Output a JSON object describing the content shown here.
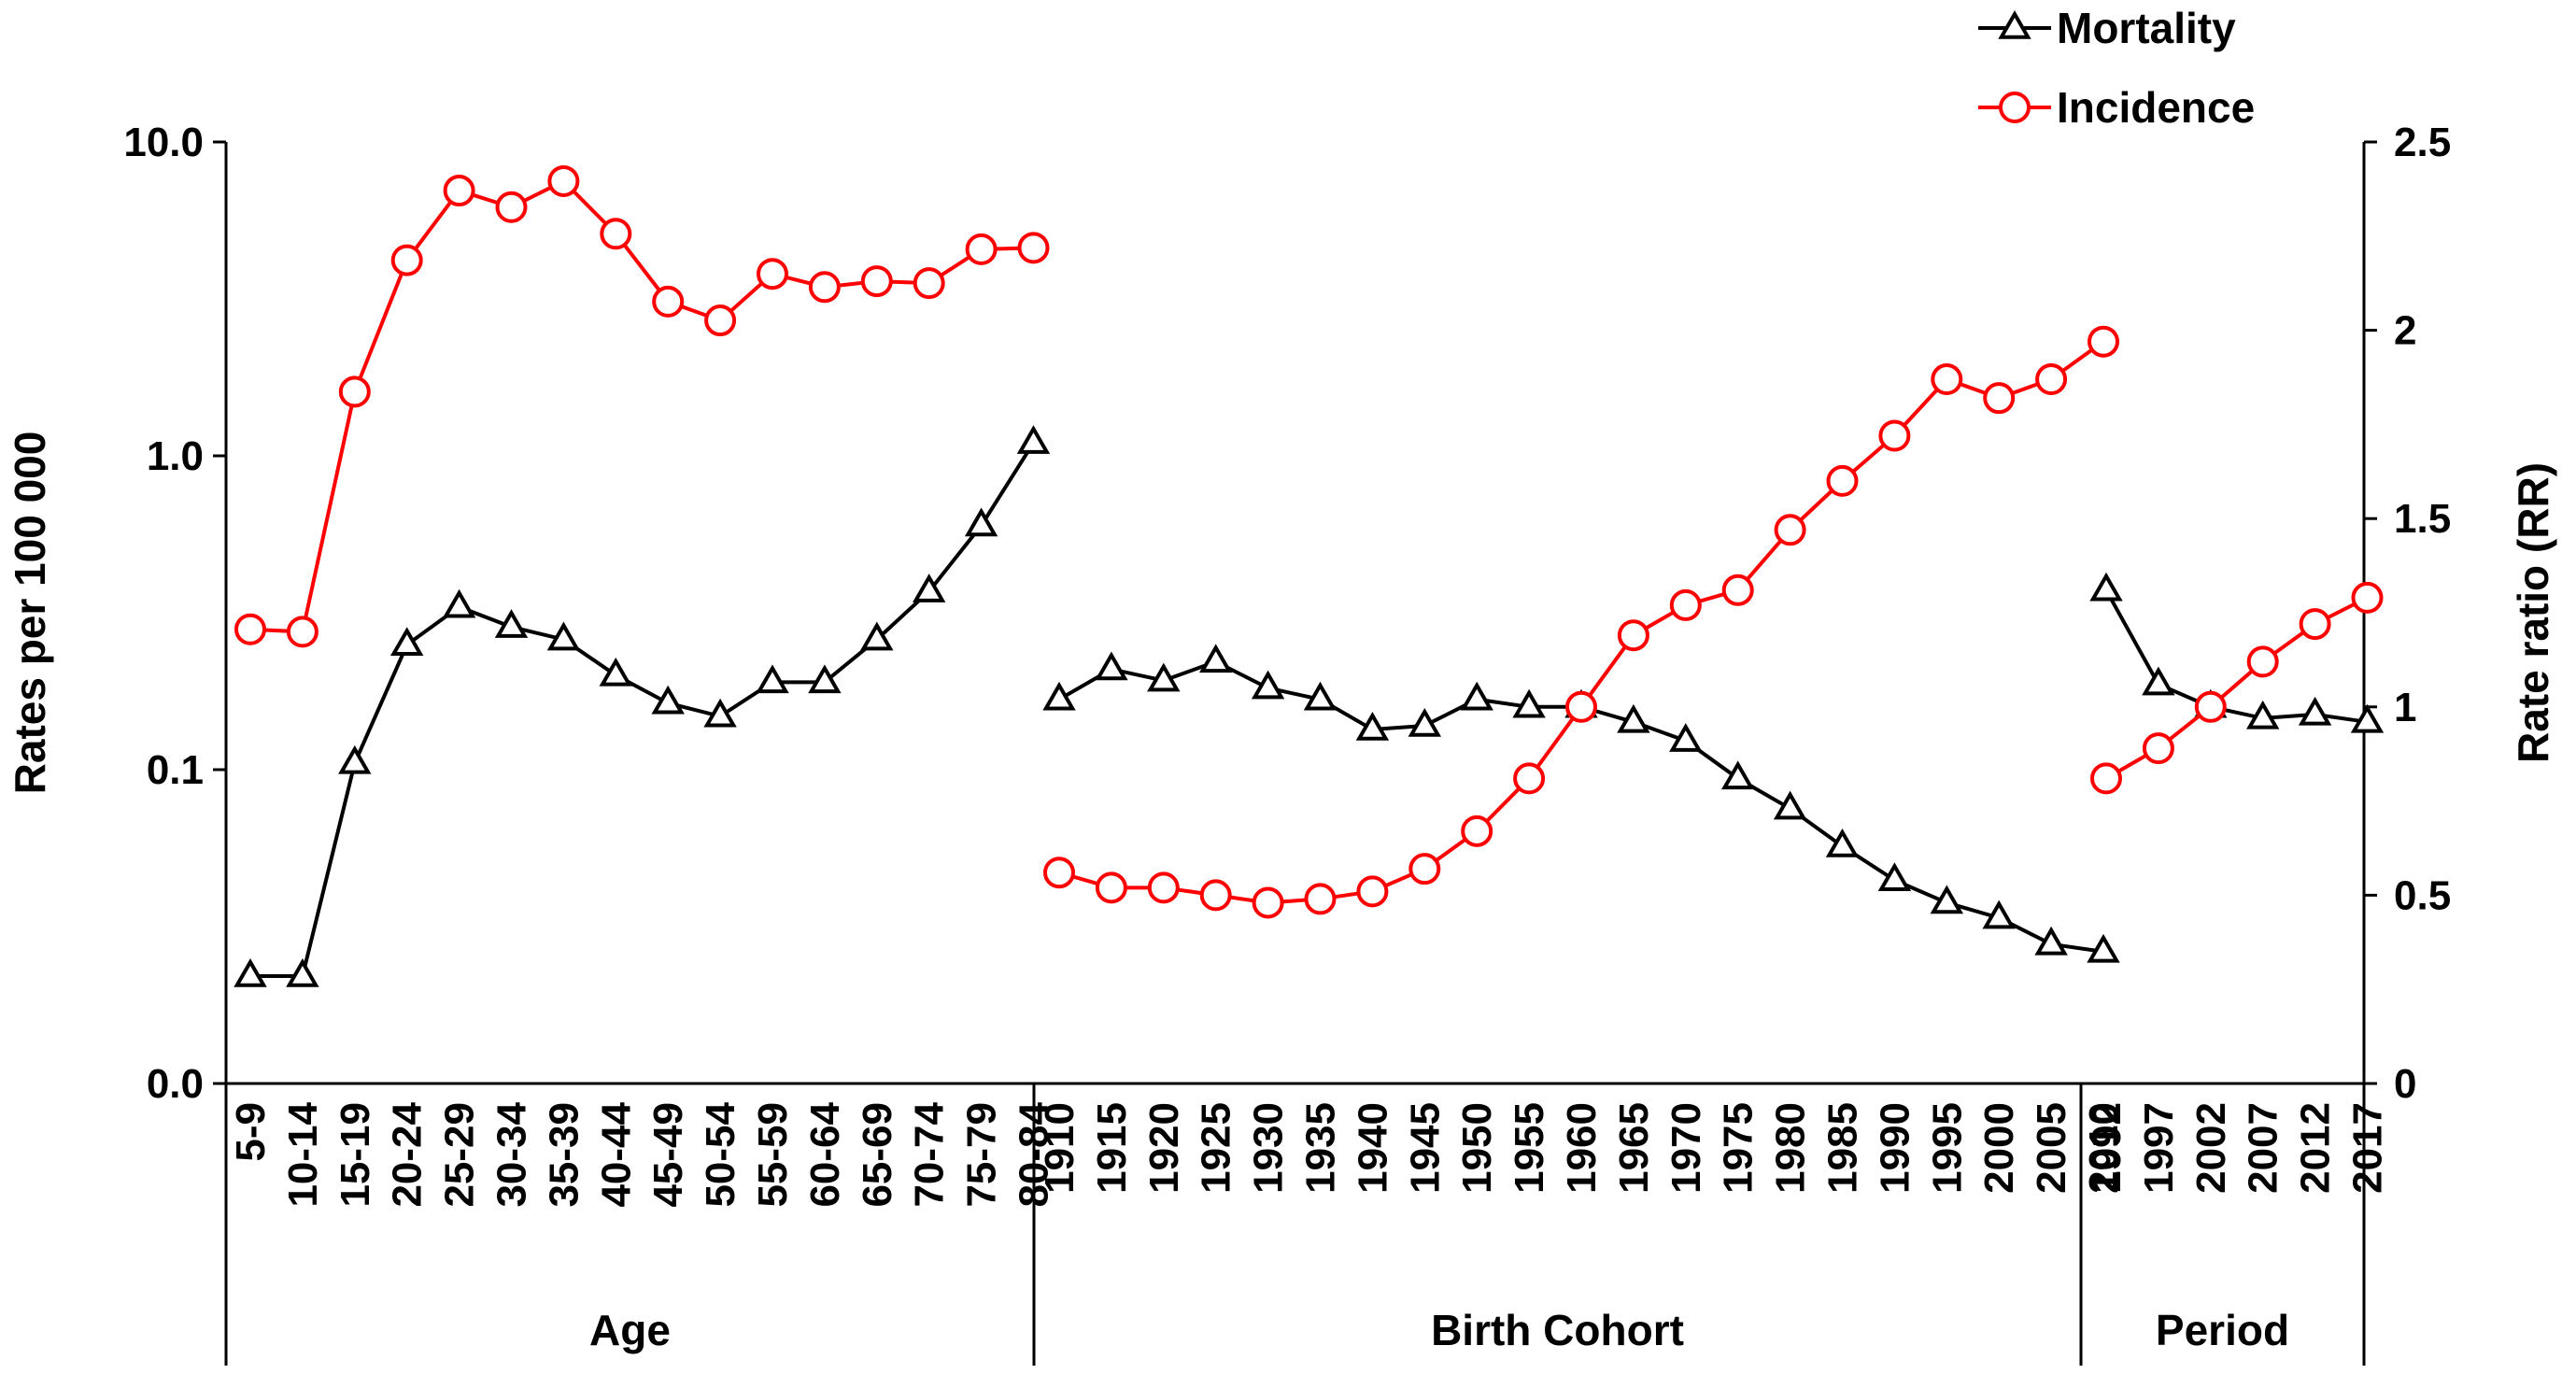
{
  "chart_data": {
    "type": "line",
    "y_left": {
      "label": "Rates per 100 000",
      "scale": "log",
      "range": [
        0.01,
        10.0
      ],
      "ticks": [
        {
          "value": 0.01,
          "label": "0.0"
        },
        {
          "value": 0.1,
          "label": "0.1"
        },
        {
          "value": 1.0,
          "label": "1.0"
        },
        {
          "value": 10.0,
          "label": "10.0"
        }
      ]
    },
    "y_right": {
      "label": "Rate ratio (RR)",
      "scale": "linear",
      "range": [
        0,
        2.5
      ],
      "ticks": [
        {
          "value": 0,
          "label": "0"
        },
        {
          "value": 0.5,
          "label": "0.5"
        },
        {
          "value": 1,
          "label": "1"
        },
        {
          "value": 1.5,
          "label": "1.5"
        },
        {
          "value": 2,
          "label": "2"
        },
        {
          "value": 2.5,
          "label": "2.5"
        }
      ]
    },
    "legend": {
      "placement": "top-right",
      "entries": [
        {
          "name": "Mortality",
          "marker": "triangle",
          "color": "#000000"
        },
        {
          "name": "Incidence",
          "marker": "circle",
          "color": "#ff0000"
        }
      ]
    },
    "groups": [
      {
        "name": "Age",
        "axis": "left",
        "categories": [
          "5-9",
          "10-14",
          "15-19",
          "20-24",
          "25-29",
          "30-34",
          "35-39",
          "40-44",
          "45-49",
          "50-54",
          "55-59",
          "60-64",
          "65-69",
          "70-74",
          "75-79",
          "80-84"
        ],
        "series": [
          {
            "name": "Mortality",
            "values": [
              0.022,
              0.022,
              0.105,
              0.25,
              0.33,
              0.285,
              0.26,
              0.2,
              0.163,
              0.148,
              0.19,
              0.19,
              0.26,
              0.37,
              0.6,
              1.1
            ]
          },
          {
            "name": "Incidence",
            "values": [
              0.28,
              0.275,
              1.6,
              4.2,
              7.0,
              6.2,
              7.5,
              5.1,
              3.1,
              2.7,
              3.8,
              3.45,
              3.6,
              3.55,
              4.55,
              4.6
            ]
          }
        ]
      },
      {
        "name": "Birth Cohort",
        "axis": "right",
        "categories": [
          "1910",
          "1915",
          "1920",
          "1925",
          "1930",
          "1935",
          "1940",
          "1945",
          "1950",
          "1955",
          "1960",
          "1965",
          "1970",
          "1975",
          "1980",
          "1985",
          "1990",
          "1995",
          "2000",
          "2005",
          "2010"
        ],
        "series": [
          {
            "name": "Mortality",
            "values": [
              1.02,
              1.1,
              1.07,
              1.12,
              1.05,
              1.02,
              0.94,
              0.95,
              1.02,
              1.0,
              1.0,
              0.96,
              0.91,
              0.81,
              0.73,
              0.63,
              0.54,
              0.48,
              0.44,
              0.37,
              0.35
            ]
          },
          {
            "name": "Incidence",
            "values": [
              0.56,
              0.52,
              0.52,
              0.5,
              0.48,
              0.49,
              0.51,
              0.57,
              0.67,
              0.81,
              1.0,
              1.19,
              1.27,
              1.31,
              1.47,
              1.6,
              1.72,
              1.87,
              1.82,
              1.87,
              1.97
            ]
          }
        ]
      },
      {
        "name": "Period",
        "axis": "right",
        "categories": [
          "1992",
          "1997",
          "2002",
          "2007",
          "2012",
          "2017"
        ],
        "series": [
          {
            "name": "Mortality",
            "values": [
              1.31,
              1.06,
              1.0,
              0.97,
              0.98,
              0.96
            ]
          },
          {
            "name": "Incidence",
            "values": [
              0.81,
              0.89,
              1.0,
              1.12,
              1.22,
              1.29
            ]
          }
        ]
      }
    ]
  }
}
